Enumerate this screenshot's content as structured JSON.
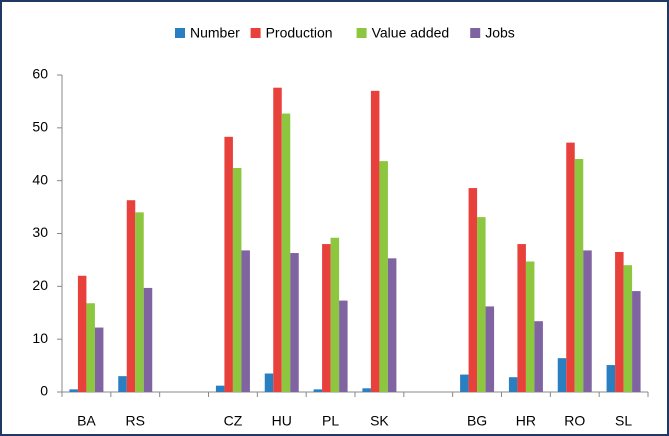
{
  "chart_data": {
    "type": "bar",
    "categories": [
      "BA",
      "RS",
      null,
      "CZ",
      "HU",
      "PL",
      "SK",
      null,
      "BG",
      "HR",
      "RO",
      "SL"
    ],
    "series": [
      {
        "name": "Number",
        "color": "#2a7fc1",
        "values": [
          0.5,
          3,
          null,
          1.2,
          3.5,
          0.5,
          0.7,
          null,
          3.3,
          2.8,
          6.4,
          5.1
        ]
      },
      {
        "name": "Production",
        "color": "#e8413b",
        "values": [
          22,
          36.3,
          null,
          48.3,
          57.6,
          28,
          57,
          null,
          38.6,
          28,
          47.2,
          26.5
        ]
      },
      {
        "name": "Value added",
        "color": "#8dc63f",
        "values": [
          16.8,
          34,
          null,
          42.4,
          52.7,
          29.2,
          43.7,
          null,
          33.1,
          24.7,
          44.1,
          24
        ]
      },
      {
        "name": "Jobs",
        "color": "#8064a2",
        "values": [
          12.2,
          19.7,
          null,
          26.8,
          26.3,
          17.3,
          25.3,
          null,
          16.2,
          13.4,
          26.8,
          19.1
        ]
      }
    ],
    "ylim": [
      0,
      60
    ],
    "yticks": [
      0,
      10,
      20,
      30,
      40,
      50,
      60
    ],
    "grid": false,
    "legend": "top"
  }
}
